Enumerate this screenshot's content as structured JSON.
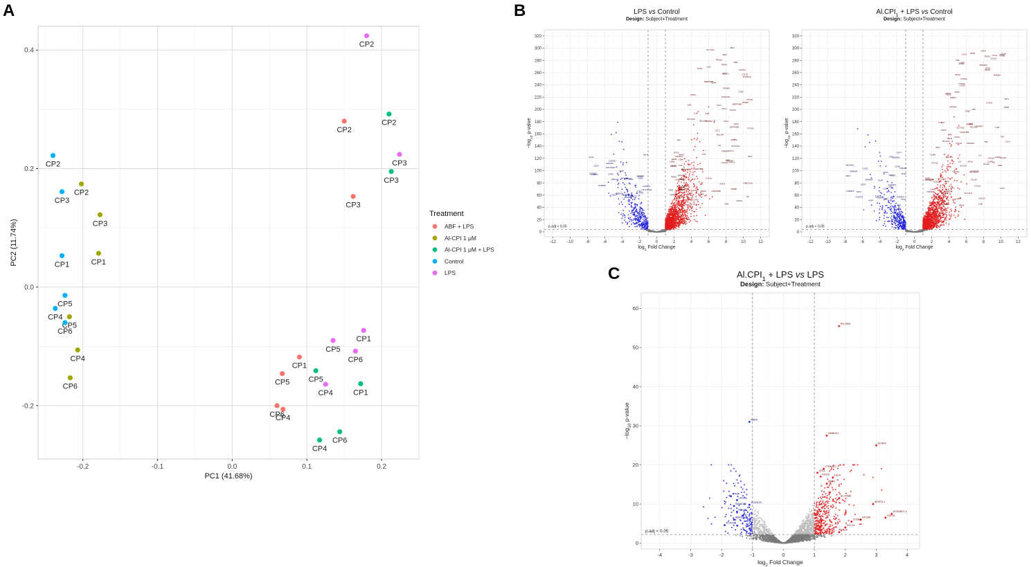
{
  "panel_labels": {
    "a": "A",
    "b": "B",
    "c": "C"
  },
  "chart_data": [
    {
      "id": "pca",
      "type": "scatter",
      "xlabel": "PC1 (41.68%)",
      "ylabel": "PC2 (11.74%)",
      "xlim": [
        -0.26,
        0.25
      ],
      "ylim": [
        -0.29,
        0.44
      ],
      "xticks": [
        -0.2,
        -0.1,
        0.0,
        0.1,
        0.2
      ],
      "yticks": [
        -0.2,
        0.0,
        0.2,
        0.4
      ],
      "xtick_labels": [
        "-0.2",
        "-0.1",
        "0.0",
        "0.1",
        "0.2"
      ],
      "ytick_labels": [
        "-0.2",
        "0.0",
        "0.2",
        "0.4"
      ],
      "grid": true,
      "legend": {
        "title": "Treatment",
        "position": "right",
        "entries": [
          {
            "name": "ABF + LPS",
            "color": "#F8766D"
          },
          {
            "name": "Al-CPI 1 μM",
            "color": "#A3A500"
          },
          {
            "name": "Al-CPI 1 μM + LPS",
            "color": "#00BF7D"
          },
          {
            "name": "Control",
            "color": "#00B0F6"
          },
          {
            "name": "LPS",
            "color": "#E76BF3"
          }
        ]
      },
      "series": [
        {
          "name": "ABF + LPS",
          "color": "#F8766D",
          "points": [
            {
              "label": "CP2",
              "x": 0.15,
              "y": 0.28
            },
            {
              "label": "CP3",
              "x": 0.162,
              "y": 0.153
            },
            {
              "label": "CP1",
              "x": 0.09,
              "y": -0.118
            },
            {
              "label": "CP5",
              "x": 0.067,
              "y": -0.146
            },
            {
              "label": "CP6",
              "x": 0.06,
              "y": -0.2
            },
            {
              "label": "CP4",
              "x": 0.068,
              "y": -0.206
            }
          ]
        },
        {
          "name": "Al-CPI 1 μM",
          "color": "#A3A500",
          "points": [
            {
              "label": "CP2",
              "x": -0.202,
              "y": 0.174
            },
            {
              "label": "CP3",
              "x": -0.177,
              "y": 0.122
            },
            {
              "label": "CP1",
              "x": -0.179,
              "y": 0.057
            },
            {
              "label": "CP5",
              "x": -0.218,
              "y": -0.05
            },
            {
              "label": "CP4",
              "x": -0.207,
              "y": -0.106
            },
            {
              "label": "CP6",
              "x": -0.217,
              "y": -0.153
            }
          ]
        },
        {
          "name": "Al-CPI 1 μM + LPS",
          "color": "#00BF7D",
          "points": [
            {
              "label": "CP2",
              "x": 0.21,
              "y": 0.292
            },
            {
              "label": "CP3",
              "x": 0.213,
              "y": 0.195
            },
            {
              "label": "CP5",
              "x": 0.112,
              "y": -0.141
            },
            {
              "label": "CP1",
              "x": 0.172,
              "y": -0.163
            },
            {
              "label": "CP6",
              "x": 0.144,
              "y": -0.244
            },
            {
              "label": "CP4",
              "x": 0.117,
              "y": -0.258
            }
          ]
        },
        {
          "name": "Control",
          "color": "#00B0F6",
          "points": [
            {
              "label": "CP2",
              "x": -0.24,
              "y": 0.222
            },
            {
              "label": "CP3",
              "x": -0.228,
              "y": 0.161
            },
            {
              "label": "CP1",
              "x": -0.228,
              "y": 0.053
            },
            {
              "label": "CP5",
              "x": -0.224,
              "y": -0.014
            },
            {
              "label": "CP4",
              "x": -0.237,
              "y": -0.036
            },
            {
              "label": "CP6",
              "x": -0.224,
              "y": -0.06
            }
          ]
        },
        {
          "name": "LPS",
          "color": "#E76BF3",
          "points": [
            {
              "label": "CP2",
              "x": 0.18,
              "y": 0.424
            },
            {
              "label": "CP3",
              "x": 0.224,
              "y": 0.224
            },
            {
              "label": "CP1",
              "x": 0.176,
              "y": -0.073
            },
            {
              "label": "CP5",
              "x": 0.135,
              "y": -0.09
            },
            {
              "label": "CP6",
              "x": 0.165,
              "y": -0.108
            },
            {
              "label": "CP4",
              "x": 0.125,
              "y": -0.164
            }
          ]
        }
      ]
    },
    {
      "id": "volcano-lps-vs-control",
      "type": "scatter",
      "title": "LPS vs Control",
      "title_parts": [
        "LPS ",
        "vs",
        " Control"
      ],
      "subtitle_bold": "Design:",
      "subtitle": "Subject+Treatment",
      "xlabel_parts": [
        "log",
        "2",
        " Fold Change"
      ],
      "ylabel_parts": [
        "−log",
        "10",
        " p-value"
      ],
      "xlim": [
        -13,
        13
      ],
      "ylim": [
        -8,
        330
      ],
      "xticks": [
        -12,
        -10,
        -8,
        -6,
        -4,
        -2,
        0,
        2,
        4,
        6,
        8,
        10,
        12
      ],
      "yticks": [
        0,
        20,
        40,
        60,
        80,
        100,
        120,
        140,
        160,
        180,
        200,
        220,
        240,
        260,
        280,
        300,
        320
      ],
      "fc_cutoff": 1,
      "p_cutoff": 4,
      "cutoff_label": "p.adj < 0.05",
      "top_genes": [
        "CIB1",
        "PDPK1",
        "IL1RN",
        "SOD2",
        "CCL3",
        "IL6",
        "CXCL8",
        "TNF",
        "IL1B",
        "CCL20",
        "PTGS2",
        "NFKBIA",
        "IRAK3",
        "SOCS3",
        "TNFAIP3",
        "ZC3H12A",
        "IER3",
        "NFKB1",
        "CD83",
        "ICAM1",
        "RELB",
        "IRF1",
        "BCL2A1",
        "SLC7A11",
        "TRAF1",
        "CCL4",
        "CD44",
        "MT2A",
        "SERPINB2",
        "GADD45B"
      ],
      "down_genes": [
        "CCR2",
        "CD1C",
        "CX3CR1",
        "FCER1A",
        "KLF4",
        "MS4A6A",
        "CD14",
        "HLA-DQA1",
        "TLR7",
        "P2RY13"
      ]
    },
    {
      "id": "volcano-alcpi-lps-vs-control",
      "type": "scatter",
      "title": "Al.CPI1 + LPS vs Control",
      "title_parts": [
        "Al.CPI",
        "1",
        " + LPS ",
        "vs",
        " Control"
      ],
      "subtitle_bold": "Design:",
      "subtitle": "Subject+Treatment",
      "xlabel_parts": [
        "log",
        "2",
        " Fold Change"
      ],
      "ylabel_parts": [
        "−log",
        "10",
        " p-value"
      ],
      "xlim": [
        -13,
        13
      ],
      "ylim": [
        -8,
        330
      ],
      "xticks": [
        -12,
        -10,
        -8,
        -6,
        -4,
        -2,
        0,
        2,
        4,
        6,
        8,
        10,
        12
      ],
      "yticks": [
        0,
        20,
        40,
        60,
        80,
        100,
        120,
        140,
        160,
        180,
        200,
        220,
        240,
        260,
        280,
        300,
        320
      ],
      "fc_cutoff": 1,
      "p_cutoff": 4,
      "cutoff_label": "p.adj < 0.05",
      "top_genes": [
        "LYNX1",
        "SOD2",
        "IL1RN",
        "CCL3",
        "CXCL8",
        "IL6",
        "TNF",
        "IL1B",
        "NFKBIA",
        "PTGS2",
        "SOCS3",
        "TNFAIP3",
        "IER3",
        "CD83",
        "ICAM1",
        "IRF1",
        "RELB",
        "CCL20",
        "TRAF1",
        "CCL4",
        "MT2A",
        "SLC7A11",
        "BCL2A1",
        "GADD45B"
      ],
      "down_genes": [
        "CCR2",
        "CD1C",
        "CX3CR1",
        "KLF4",
        "MS4A6A",
        "CD14",
        "TLR7",
        "FCER1A"
      ]
    },
    {
      "id": "volcano-alcpi-lps-vs-lps",
      "type": "scatter",
      "title": "Al.CPI1 + LPS vs LPS",
      "title_parts": [
        "Al.CPI",
        "1",
        " + LPS ",
        "vs",
        " LPS"
      ],
      "subtitle_bold": "Design:",
      "subtitle": "Subject+Treatment",
      "xlabel_parts": [
        "log",
        "2",
        " Fold Change"
      ],
      "ylabel_parts": [
        "−log",
        "10",
        " p-value"
      ],
      "xlim": [
        -4.6,
        4.4
      ],
      "ylim": [
        -1.5,
        64
      ],
      "xticks": [
        -4,
        -3,
        -2,
        -1,
        0,
        1,
        2,
        3,
        4
      ],
      "yticks": [
        0,
        10,
        20,
        30,
        40,
        50,
        60
      ],
      "fc_cutoff": 1,
      "p_cutoff": 2.2,
      "cutoff_label": "p.adj < 0.05",
      "labeled_genes": [
        {
          "gene": "RP-HMG",
          "x": 1.8,
          "y": 55.5
        },
        {
          "gene": "NCAPH",
          "x": 3.0,
          "y": 25.0
        },
        {
          "gene": "HMBOX1",
          "x": 1.4,
          "y": 27.5
        },
        {
          "gene": "ASPG",
          "x": -1.1,
          "y": 31.0
        },
        {
          "gene": "CTNNAL1",
          "x": 1.3,
          "y": 19.0
        },
        {
          "gene": "CUL1",
          "x": 1.1,
          "y": 18.0
        },
        {
          "gene": "FZD10",
          "x": 1.2,
          "y": 17.0
        },
        {
          "gene": "LDLR",
          "x": 1.6,
          "y": 16.8
        },
        {
          "gene": "MBD3",
          "x": 1.4,
          "y": 15.2
        },
        {
          "gene": "SLC25A6",
          "x": 1.8,
          "y": 11.5
        },
        {
          "gene": "TXNIP",
          "x": -1.7,
          "y": 12.0
        },
        {
          "gene": "LAG3",
          "x": -1.5,
          "y": 11.0
        },
        {
          "gene": "KIAA0317",
          "x": -1.6,
          "y": 9.5
        },
        {
          "gene": "ZC3H12C",
          "x": -1.1,
          "y": 9.8
        },
        {
          "gene": "ADCY1",
          "x": -1.5,
          "y": 8.0
        },
        {
          "gene": "ANKS1A",
          "x": -1.6,
          "y": 6.0
        },
        {
          "gene": "PLXDC1",
          "x": -1.9,
          "y": 4.6
        },
        {
          "gene": "AFAP1L1",
          "x": 2.9,
          "y": 10.0
        },
        {
          "gene": "AC009871.1",
          "x": 3.5,
          "y": 7.5
        },
        {
          "gene": "CDF15",
          "x": 3.3,
          "y": 6.5
        },
        {
          "gene": "KIF20A",
          "x": 2.5,
          "y": 6.0
        },
        {
          "gene": "CCNB2",
          "x": 2.2,
          "y": 5.5
        },
        {
          "gene": "CDC20",
          "x": 2.0,
          "y": 4.0
        },
        {
          "gene": "ORC6",
          "x": 1.8,
          "y": 2.8
        }
      ]
    }
  ]
}
